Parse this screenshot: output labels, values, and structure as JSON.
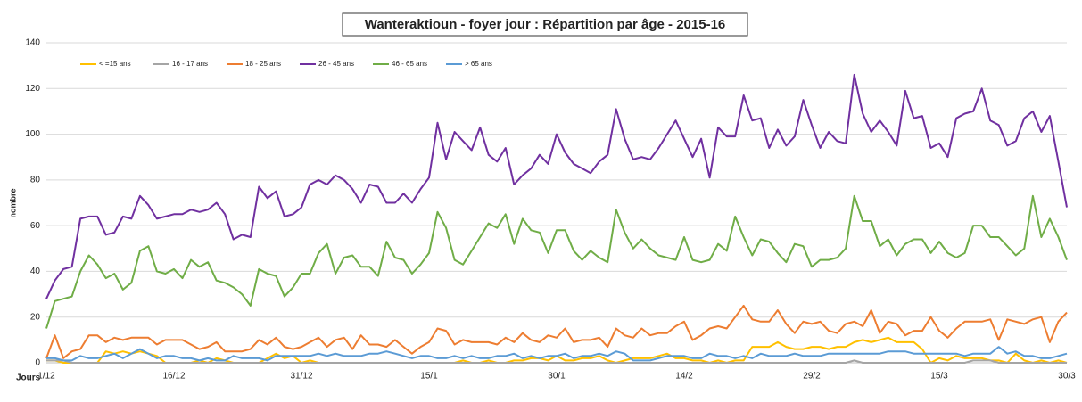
{
  "chart_data": {
    "type": "line",
    "title": "Wanteraktioun - foyer jour : Répartition par âge - 2015-16",
    "ylabel": "nombre",
    "xlabel": "Jours",
    "legend": "top-left",
    "grid": true,
    "ylim": [
      0,
      140
    ],
    "yticks": [
      0,
      20,
      40,
      60,
      80,
      100,
      120,
      140
    ],
    "categories": [
      "1/12",
      null,
      null,
      null,
      null,
      null,
      null,
      null,
      null,
      null,
      null,
      null,
      null,
      null,
      null,
      "16/12",
      null,
      null,
      null,
      null,
      null,
      null,
      null,
      null,
      null,
      null,
      null,
      null,
      null,
      null,
      "31/12",
      null,
      null,
      null,
      null,
      null,
      null,
      null,
      null,
      null,
      null,
      null,
      null,
      null,
      null,
      "15/1",
      null,
      null,
      null,
      null,
      null,
      null,
      null,
      null,
      null,
      null,
      null,
      null,
      null,
      null,
      "30/1",
      null,
      null,
      null,
      null,
      null,
      null,
      null,
      null,
      null,
      null,
      null,
      null,
      null,
      null,
      "14/2",
      null,
      null,
      null,
      null,
      null,
      null,
      null,
      null,
      null,
      null,
      null,
      null,
      null,
      null,
      "29/2",
      null,
      null,
      null,
      null,
      null,
      null,
      null,
      null,
      null,
      null,
      null,
      null,
      null,
      null,
      "15/3",
      null,
      null,
      null,
      null,
      null,
      null,
      null,
      null,
      null,
      null,
      null,
      null,
      null,
      null,
      "30/3"
    ],
    "series": [
      {
        "name": "< =15 ans",
        "color": "#ffc000",
        "values": [
          1,
          1,
          0,
          0,
          0,
          0,
          0,
          5,
          4,
          5,
          4,
          5,
          4,
          3,
          0,
          0,
          0,
          0,
          1,
          0,
          2,
          1,
          0,
          0,
          0,
          0,
          2,
          4,
          2,
          3,
          0,
          1,
          0,
          0,
          0,
          0,
          0,
          0,
          0,
          0,
          0,
          0,
          0,
          0,
          0,
          0,
          0,
          0,
          0,
          1,
          0,
          0,
          1,
          0,
          0,
          1,
          1,
          2,
          2,
          1,
          3,
          1,
          1,
          2,
          2,
          3,
          1,
          0,
          1,
          2,
          2,
          2,
          3,
          4,
          2,
          2,
          1,
          1,
          0,
          1,
          0,
          1,
          1,
          7,
          7,
          7,
          9,
          7,
          6,
          6,
          7,
          7,
          6,
          7,
          7,
          9,
          10,
          9,
          10,
          11,
          9,
          9,
          9,
          6,
          0,
          2,
          1,
          3,
          2,
          2,
          2,
          1,
          1,
          0,
          4,
          1,
          0,
          1,
          0,
          1,
          0
        ]
      },
      {
        "name": "16 - 17 ans",
        "color": "#a5a5a5",
        "values": [
          1,
          1,
          1,
          0,
          0,
          0,
          0,
          0,
          0,
          0,
          0,
          0,
          0,
          0,
          0,
          0,
          0,
          0,
          0,
          0,
          0,
          0,
          0,
          0,
          0,
          0,
          0,
          0,
          0,
          0,
          0,
          0,
          0,
          0,
          0,
          0,
          0,
          0,
          0,
          0,
          0,
          0,
          0,
          0,
          0,
          0,
          0,
          0,
          0,
          0,
          0,
          0,
          0,
          0,
          0,
          0,
          0,
          0,
          0,
          0,
          0,
          0,
          0,
          0,
          0,
          0,
          0,
          0,
          0,
          0,
          0,
          0,
          0,
          0,
          0,
          0,
          0,
          0,
          0,
          0,
          0,
          0,
          0,
          0,
          0,
          0,
          0,
          0,
          0,
          0,
          0,
          0,
          0,
          0,
          0,
          1,
          0,
          0,
          0,
          0,
          0,
          0,
          0,
          0,
          0,
          0,
          0,
          0,
          0,
          1,
          1,
          1,
          0,
          0,
          0,
          0,
          0,
          0,
          0,
          0,
          0
        ]
      },
      {
        "name": "18 - 25 ans",
        "color": "#ed7d31",
        "values": [
          2,
          12,
          2,
          5,
          6,
          12,
          12,
          9,
          11,
          10,
          11,
          11,
          11,
          8,
          10,
          10,
          10,
          8,
          6,
          7,
          9,
          5,
          5,
          5,
          6,
          10,
          8,
          11,
          7,
          6,
          7,
          9,
          11,
          7,
          10,
          11,
          6,
          12,
          8,
          8,
          7,
          10,
          7,
          4,
          7,
          9,
          15,
          14,
          8,
          10,
          9,
          9,
          9,
          8,
          11,
          9,
          13,
          10,
          9,
          12,
          11,
          15,
          9,
          10,
          10,
          11,
          7,
          15,
          12,
          11,
          15,
          12,
          13,
          13,
          16,
          18,
          10,
          12,
          15,
          16,
          15,
          20,
          25,
          19,
          18,
          18,
          23,
          17,
          13,
          18,
          17,
          18,
          14,
          13,
          17,
          18,
          16,
          23,
          13,
          18,
          17,
          12,
          14,
          14,
          20,
          14,
          11,
          15,
          18,
          18,
          18,
          19,
          10,
          19,
          18,
          17,
          19,
          20,
          9,
          18,
          22
        ]
      },
      {
        "name": "26 - 45 ans",
        "color": "#7030a0",
        "values": [
          28,
          36,
          41,
          42,
          63,
          64,
          64,
          56,
          57,
          64,
          63,
          73,
          69,
          63,
          64,
          65,
          65,
          67,
          66,
          67,
          70,
          65,
          54,
          56,
          55,
          77,
          72,
          75,
          64,
          65,
          68,
          78,
          80,
          78,
          82,
          80,
          76,
          70,
          78,
          77,
          70,
          70,
          74,
          70,
          76,
          81,
          105,
          89,
          101,
          97,
          93,
          103,
          91,
          88,
          94,
          78,
          82,
          85,
          91,
          87,
          100,
          92,
          87,
          85,
          83,
          88,
          91,
          111,
          98,
          89,
          90,
          89,
          94,
          100,
          106,
          98,
          90,
          98,
          81,
          103,
          99,
          99,
          117,
          106,
          107,
          94,
          102,
          95,
          99,
          115,
          104,
          94,
          101,
          97,
          96,
          126,
          109,
          101,
          106,
          101,
          95,
          119,
          107,
          108,
          94,
          96,
          90,
          107,
          109,
          110,
          120,
          106,
          104,
          95,
          97,
          107,
          110,
          101,
          108,
          88,
          68
        ]
      },
      {
        "name": "46 - 65 ans",
        "color": "#70ad47",
        "values": [
          15,
          27,
          28,
          29,
          40,
          47,
          43,
          37,
          39,
          32,
          35,
          49,
          51,
          40,
          39,
          41,
          37,
          45,
          42,
          44,
          36,
          35,
          33,
          30,
          25,
          41,
          39,
          38,
          29,
          33,
          39,
          39,
          48,
          52,
          39,
          46,
          47,
          42,
          42,
          38,
          53,
          46,
          45,
          39,
          43,
          48,
          66,
          59,
          45,
          43,
          49,
          55,
          61,
          59,
          65,
          52,
          63,
          58,
          57,
          48,
          58,
          58,
          49,
          45,
          49,
          46,
          44,
          67,
          57,
          50,
          54,
          50,
          47,
          46,
          45,
          55,
          45,
          44,
          45,
          52,
          49,
          64,
          55,
          47,
          54,
          53,
          48,
          44,
          52,
          51,
          42,
          45,
          45,
          46,
          50,
          73,
          62,
          62,
          51,
          54,
          47,
          52,
          54,
          54,
          48,
          53,
          48,
          46,
          48,
          60,
          60,
          55,
          55,
          51,
          47,
          50,
          73,
          55,
          63,
          55,
          45
        ]
      },
      {
        "name": "> 65 ans",
        "color": "#5b9bd5",
        "values": [
          2,
          2,
          1,
          1,
          3,
          2,
          2,
          3,
          4,
          2,
          4,
          6,
          4,
          2,
          3,
          3,
          2,
          2,
          1,
          2,
          1,
          1,
          3,
          2,
          2,
          2,
          1,
          3,
          3,
          3,
          3,
          3,
          4,
          3,
          4,
          3,
          3,
          3,
          4,
          4,
          5,
          4,
          3,
          2,
          3,
          3,
          2,
          2,
          3,
          2,
          3,
          2,
          2,
          3,
          3,
          4,
          2,
          3,
          2,
          3,
          3,
          4,
          2,
          3,
          3,
          4,
          3,
          5,
          4,
          1,
          1,
          1,
          2,
          3,
          3,
          3,
          2,
          2,
          4,
          3,
          3,
          2,
          3,
          2,
          4,
          3,
          3,
          3,
          4,
          3,
          3,
          3,
          4,
          4,
          4,
          4,
          4,
          4,
          4,
          5,
          5,
          5,
          4,
          4,
          4,
          4,
          4,
          4,
          3,
          4,
          4,
          4,
          7,
          4,
          5,
          3,
          3,
          2,
          2,
          3,
          4
        ]
      }
    ]
  }
}
